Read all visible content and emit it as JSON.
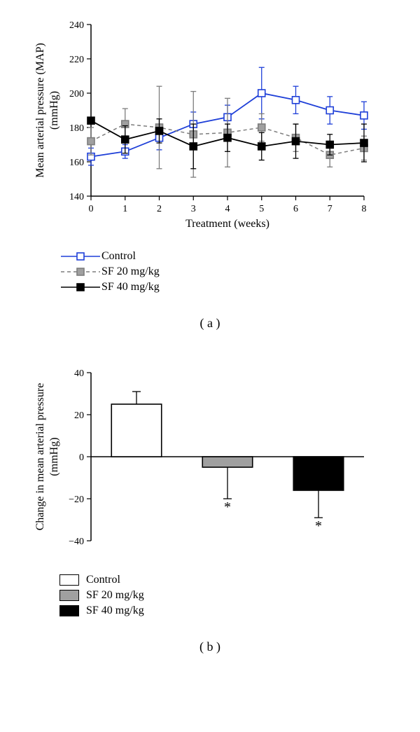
{
  "panel_a": {
    "type": "line",
    "xlabel": "Treatment (weeks)",
    "ylabel_line1": "Mean arterial pressure (MAP)",
    "ylabel_line2": "(mmHg)",
    "xlim": [
      0,
      8
    ],
    "ylim": [
      140,
      240
    ],
    "xtick_step": 1,
    "ytick_step": 20,
    "xticks": [
      0,
      1,
      2,
      3,
      4,
      5,
      6,
      7,
      8
    ],
    "yticks": [
      140,
      160,
      180,
      200,
      220,
      240
    ],
    "label_fontsize": 16,
    "tick_fontsize": 14,
    "axis_color": "#000000",
    "series": [
      {
        "name": "Control",
        "color": "#1e3fd8",
        "marker": "open-square",
        "marker_fill": "#ffffff",
        "line_dash": "none",
        "line_width": 1.8,
        "x": [
          0,
          1,
          2,
          3,
          4,
          5,
          6,
          7,
          8
        ],
        "y": [
          163,
          166,
          174,
          182,
          186,
          200,
          196,
          190,
          187
        ],
        "err": [
          5,
          4,
          7,
          7,
          7,
          15,
          8,
          8,
          8
        ]
      },
      {
        "name": "SF 20 mg/kg",
        "color": "#7d7d7d",
        "marker": "filled-square",
        "marker_fill": "#a0a0a0",
        "line_dash": "dash",
        "line_width": 1.5,
        "x": [
          0,
          1,
          2,
          3,
          4,
          5,
          6,
          7,
          8
        ],
        "y": [
          172,
          182,
          180,
          176,
          177,
          180,
          174,
          164,
          168
        ],
        "err": [
          8,
          9,
          24,
          25,
          20,
          8,
          8,
          7,
          7
        ]
      },
      {
        "name": "SF 40 mg/kg",
        "color": "#000000",
        "marker": "filled-square",
        "marker_fill": "#000000",
        "line_dash": "none",
        "line_width": 1.8,
        "x": [
          0,
          1,
          2,
          3,
          4,
          5,
          6,
          7,
          8
        ],
        "y": [
          184,
          173,
          178,
          169,
          174,
          169,
          172,
          170,
          171
        ],
        "err": [
          0,
          8,
          7,
          13,
          8,
          8,
          10,
          6,
          11
        ]
      }
    ],
    "legend_items": [
      {
        "label": "Control",
        "color": "#1e3fd8",
        "fill": "#ffffff",
        "dash": "none"
      },
      {
        "label": "SF 20 mg/kg",
        "color": "#7d7d7d",
        "fill": "#a0a0a0",
        "dash": "dash"
      },
      {
        "label": "SF 40 mg/kg",
        "color": "#000000",
        "fill": "#000000",
        "dash": "none"
      }
    ],
    "caption": "( a )"
  },
  "panel_b": {
    "type": "bar",
    "ylabel_line1": "Change in mean arterial pressure",
    "ylabel_line2": "(mmHg)",
    "ylim": [
      -40,
      40
    ],
    "ytick_step": 20,
    "yticks": [
      -40,
      -20,
      0,
      20,
      40
    ],
    "label_fontsize": 16,
    "tick_fontsize": 14,
    "axis_color": "#000000",
    "bar_width": 0.55,
    "bars": [
      {
        "name": "Control",
        "value": 25,
        "err": 6,
        "fill": "#ffffff",
        "stroke": "#000000",
        "sig": false
      },
      {
        "name": "SF 20 mg/kg",
        "value": -5,
        "err": 15,
        "fill": "#a0a0a0",
        "stroke": "#000000",
        "sig": true
      },
      {
        "name": "SF 40 mg/kg",
        "value": -16,
        "err": 13,
        "fill": "#000000",
        "stroke": "#000000",
        "sig": true
      }
    ],
    "sig_marker": "*",
    "legend_items": [
      {
        "label": "Control",
        "fill": "#ffffff"
      },
      {
        "label": "SF 20 mg/kg",
        "fill": "#a0a0a0"
      },
      {
        "label": "SF 40 mg/kg",
        "fill": "#000000"
      }
    ],
    "caption": "( b )"
  }
}
